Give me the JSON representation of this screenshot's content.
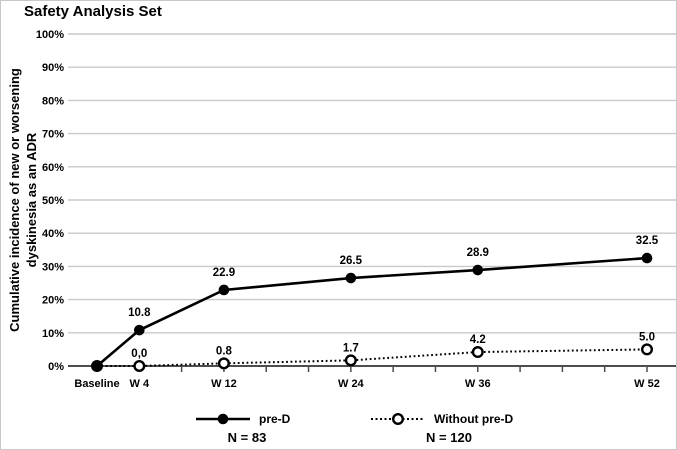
{
  "title": "Safety Analysis Set",
  "chart_data": {
    "type": "line",
    "title": "Safety Analysis Set",
    "ylabel_line1": "Cumulative incidence of new or worsening",
    "ylabel_line2": "dyskinesia as an ADR",
    "x_weeks": [
      0,
      4,
      12,
      24,
      36,
      52
    ],
    "categories": [
      "Baseline",
      "W 4",
      "W 12",
      "W 24",
      "W 36",
      "W 52"
    ],
    "y_ticks": [
      "100%",
      "90%",
      "80%",
      "70%",
      "60%",
      "50%",
      "40%",
      "30%",
      "20%",
      "10%",
      "0%"
    ],
    "ylim": [
      0,
      100
    ],
    "grid": "horizontal",
    "minor_tick_interval_weeks": 4,
    "legend_position": "bottom",
    "series": [
      {
        "name": "pre-D",
        "n_label": "N = 83",
        "line": "solid",
        "marker": "filled-circle",
        "values": [
          0,
          10.8,
          22.9,
          26.5,
          28.9,
          32.5
        ],
        "labels": [
          "",
          "10.8",
          "22.9",
          "26.5",
          "28.9",
          "32.5"
        ]
      },
      {
        "name": "Without pre-D",
        "n_label": "N = 120",
        "line": "dotted",
        "marker": "open-circle",
        "values": [
          0,
          0.0,
          0.8,
          1.7,
          4.2,
          5.0
        ],
        "labels": [
          "",
          "0,0",
          "0.8",
          "1.7",
          "4.2",
          "5.0"
        ]
      }
    ],
    "colors": {
      "line": "#000000",
      "grid": "#c9c9c9",
      "axis": "#4d4d4d",
      "background": "#ffffff",
      "text": "#000000"
    }
  }
}
